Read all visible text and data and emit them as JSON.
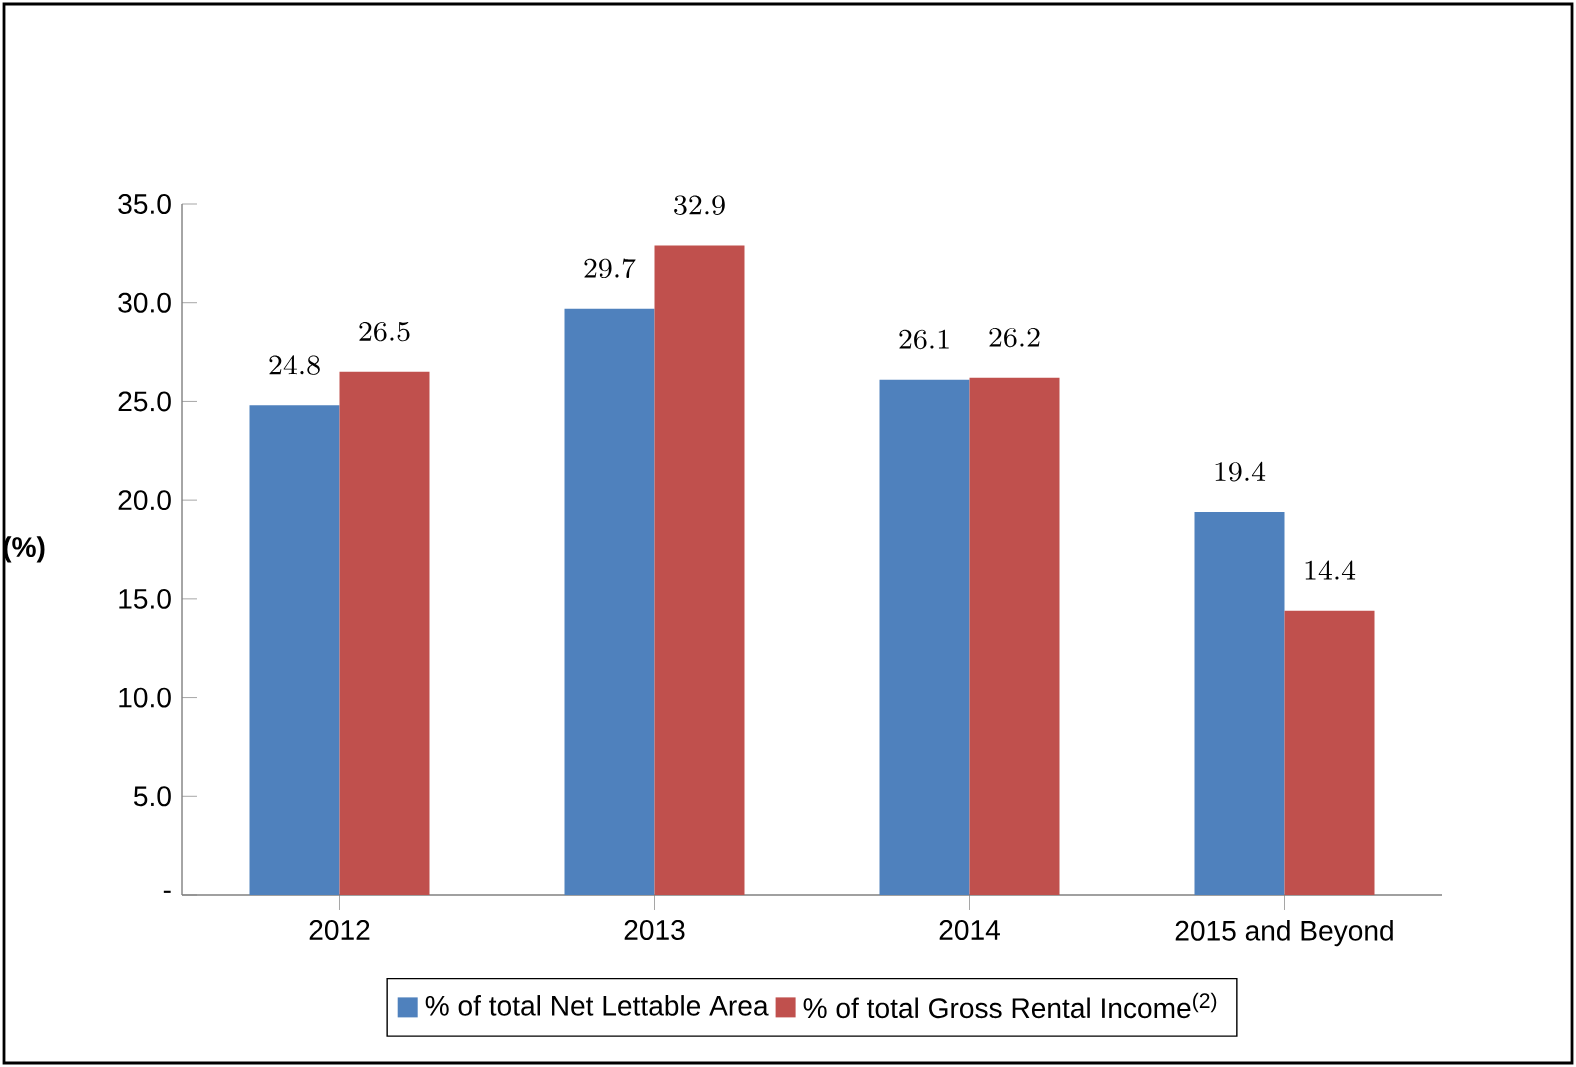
{
  "chart_data": {
    "type": "bar",
    "ylabel": "(%)",
    "categories": [
      "2012",
      "2013",
      "2014",
      "2015 and Beyond"
    ],
    "series": [
      {
        "name": "% of total Net Lettable Area",
        "color": "#4f81bd",
        "values": [
          24.8,
          29.7,
          26.1,
          19.4
        ]
      },
      {
        "name": "% of total Gross Rental Income$^{(2)}$",
        "color": "#c0504d",
        "values": [
          26.5,
          32.9,
          26.2,
          14.4
        ]
      }
    ],
    "ylim": [
      0,
      35
    ],
    "yticks": [
      {
        "value": 0,
        "label": "-"
      },
      {
        "value": 5,
        "label": "5.0"
      },
      {
        "value": 10,
        "label": "10.0"
      },
      {
        "value": 15,
        "label": "15.0"
      },
      {
        "value": 20,
        "label": "20.0"
      },
      {
        "value": 25,
        "label": "25.0"
      },
      {
        "value": 30,
        "label": "30.0"
      },
      {
        "value": 35,
        "label": "35.0"
      }
    ],
    "data_labels": true,
    "legend": "bottom",
    "grid": false
  }
}
